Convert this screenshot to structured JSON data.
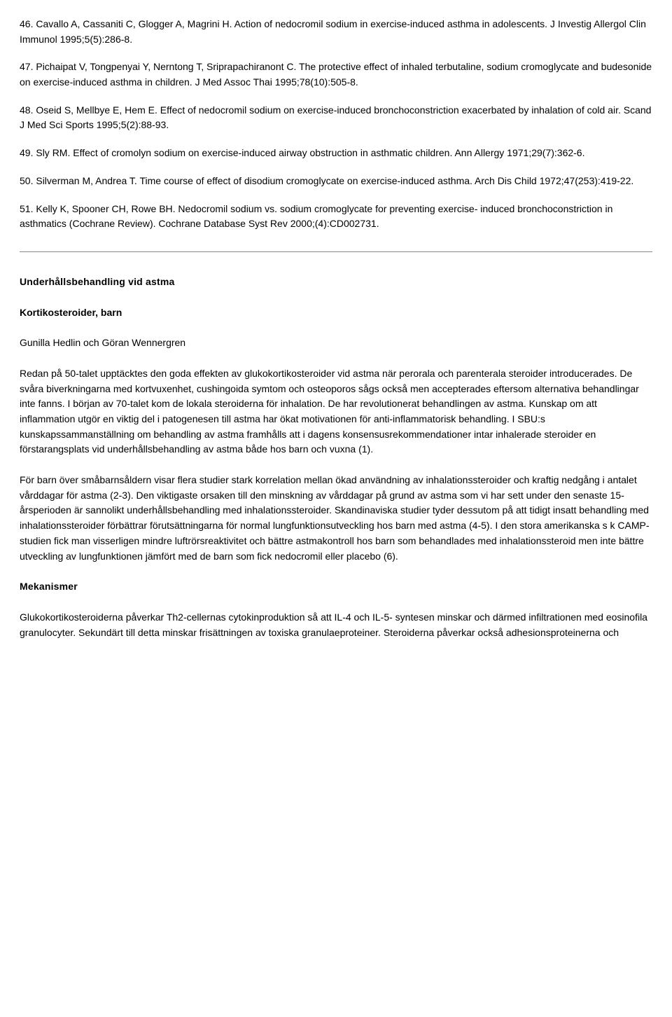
{
  "refs": {
    "r46": "46. Cavallo A, Cassaniti C, Glogger A, Magrini H. Action of nedocromil sodium in exercise-induced asthma in adolescents. J Investig Allergol Clin Immunol 1995;5(5):286-8.",
    "r47": "47. Pichaipat V, Tongpenyai Y, Nerntong T, Sriprapachiranont C. The protective effect of inhaled terbutaline, sodium cromoglycate and budesonide on exercise-induced asthma in children. J Med Assoc Thai 1995;78(10):505-8.",
    "r48": "48. Oseid S, Mellbye E, Hem E. Effect of nedocromil sodium on exercise-induced bronchoconstriction exacerbated by inhalation of cold air. Scand J Med Sci Sports 1995;5(2):88-93.",
    "r49": "49. Sly RM. Effect of cromolyn sodium on exercise-induced airway obstruction in asthmatic children. Ann Allergy 1971;29(7):362-6.",
    "r50": "50. Silverman M, Andrea T. Time course of effect of disodium cromoglycate on exercise-induced asthma. Arch Dis Child 1972;47(253):419-22.",
    "r51": "51. Kelly K, Spooner CH, Rowe BH. Nedocromil sodium vs. sodium cromoglycate for preventing exercise- induced bronchoconstriction in asthmatics (Cochrane Review). Cochrane Database Syst Rev 2000;(4):CD002731."
  },
  "section": {
    "title": "Underhållsbehandling vid astma",
    "subtitle": "Kortikosteroider, barn",
    "authors": "Gunilla Hedlin och Göran Wennergren",
    "para1": "Redan på 50-talet upptäcktes den goda effekten av glukokortikosteroider vid astma när perorala och parenterala steroider introducerades. De svåra biverkningarna med kortvuxenhet, cushingoida symtom och osteoporos sågs också men accepterades eftersom alternativa behandlingar inte fanns. I början av 70-talet kom de lokala steroiderna för inhalation. De har revolutionerat behandlingen av astma. Kunskap om att inflammation utgör en viktig del i patogenesen till astma har ökat motivationen för anti-inflammatorisk behandling. I SBU:s kunskapssammanställning om behandling av astma framhålls att i dagens konsensusrekommendationer intar inhalerade steroider en förstarangsplats vid underhållsbehandling av astma både hos barn och vuxna (1).",
    "para2": "För barn över småbarnsåldern visar flera studier stark korrelation mellan ökad användning av inhalationssteroider och kraftig nedgång i antalet vårddagar för astma (2-3). Den viktigaste orsaken till den minskning av vårddagar på grund av astma som vi har sett under den senaste 15-årsperioden är sannolikt underhållsbehandling med inhalationssteroider. Skandinaviska studier tyder dessutom på att tidigt insatt behandling med inhalationssteroider förbättrar förutsättningarna för normal lungfunktionsutveckling hos barn med astma (4-5). I den stora amerikanska s k CAMP-studien fick man visserligen mindre luftrörsreaktivitet och bättre astmakontroll hos barn som behandlades med inhalationssteroid men inte bättre utveckling av lungfunktionen jämfört med de barn som fick nedocromil eller placebo (6).",
    "mech_title": "Mekanismer",
    "mech_para": "Glukokortikosteroiderna påverkar Th2-cellernas cytokinproduktion så att IL-4 och IL-5- syntesen minskar och därmed infiltrationen med eosinofila granulocyter. Sekundärt till detta minskar frisättningen av toxiska granulaeproteiner. Steroiderna påverkar också adhesionsproteinerna och"
  }
}
